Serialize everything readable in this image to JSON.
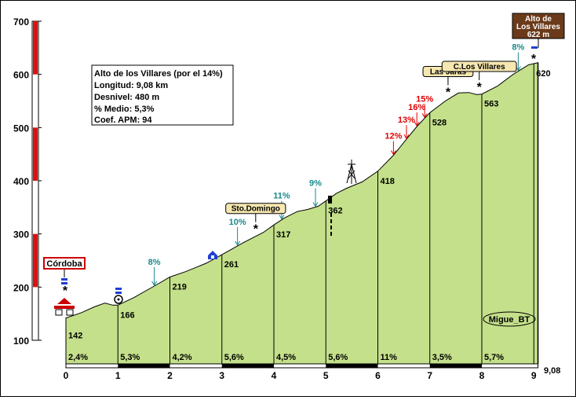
{
  "chart_data": {
    "type": "area",
    "info": {
      "title": "Alto de los Villares (por el 14%)",
      "longitud": "Longitud: 9,08 km",
      "desnivel": "Desnivel: 480 m",
      "medio": "% Medio: 5,3%",
      "apm": "Coef. APM: 94"
    },
    "summit": {
      "line1": "Alto de",
      "line2": "Los Villares",
      "line3": "622 m"
    },
    "start_label": "Córdoba",
    "author": "Migue_BT",
    "ylim": [
      100,
      700
    ],
    "xlim": [
      0,
      9.08
    ],
    "y_ticks": [
      "100",
      "200",
      "300",
      "400",
      "500",
      "600",
      "700"
    ],
    "x_ticks": [
      "0",
      "1",
      "2",
      "3",
      "4",
      "5",
      "6",
      "7",
      "8",
      "9"
    ],
    "x_end_label": "9,08",
    "profile": [
      {
        "x": 0,
        "y": 142
      },
      {
        "x": 0.3,
        "y": 152
      },
      {
        "x": 0.55,
        "y": 163
      },
      {
        "x": 0.75,
        "y": 170
      },
      {
        "x": 0.9,
        "y": 166
      },
      {
        "x": 1,
        "y": 166
      },
      {
        "x": 1.3,
        "y": 180
      },
      {
        "x": 1.7,
        "y": 202
      },
      {
        "x": 2,
        "y": 219
      },
      {
        "x": 2.3,
        "y": 229
      },
      {
        "x": 2.7,
        "y": 245
      },
      {
        "x": 3,
        "y": 261
      },
      {
        "x": 3.4,
        "y": 283
      },
      {
        "x": 3.8,
        "y": 303
      },
      {
        "x": 4,
        "y": 317
      },
      {
        "x": 4.2,
        "y": 330
      },
      {
        "x": 4.45,
        "y": 342
      },
      {
        "x": 4.65,
        "y": 346
      },
      {
        "x": 4.85,
        "y": 352
      },
      {
        "x": 5,
        "y": 362
      },
      {
        "x": 5.2,
        "y": 376
      },
      {
        "x": 5.4,
        "y": 386
      },
      {
        "x": 5.7,
        "y": 398
      },
      {
        "x": 6,
        "y": 418
      },
      {
        "x": 6.3,
        "y": 448
      },
      {
        "x": 6.55,
        "y": 478
      },
      {
        "x": 6.75,
        "y": 502
      },
      {
        "x": 7,
        "y": 528
      },
      {
        "x": 7.3,
        "y": 550
      },
      {
        "x": 7.55,
        "y": 565
      },
      {
        "x": 7.75,
        "y": 566
      },
      {
        "x": 7.9,
        "y": 562
      },
      {
        "x": 8,
        "y": 563
      },
      {
        "x": 8.3,
        "y": 578
      },
      {
        "x": 8.6,
        "y": 600
      },
      {
        "x": 8.9,
        "y": 618
      },
      {
        "x": 9.08,
        "y": 622
      }
    ],
    "km_points": [
      {
        "x": 0,
        "value": "142"
      },
      {
        "x": 1,
        "value": "166"
      },
      {
        "x": 2,
        "value": "219"
      },
      {
        "x": 3,
        "value": "261"
      },
      {
        "x": 4,
        "value": "317"
      },
      {
        "x": 5,
        "value": "362"
      },
      {
        "x": 6,
        "value": "418"
      },
      {
        "x": 7,
        "value": "528"
      },
      {
        "x": 8,
        "value": "563"
      },
      {
        "x": 9,
        "value": "620"
      }
    ],
    "segment_gradients": [
      "2,4%",
      "5,3%",
      "4,2%",
      "5,6%",
      "4,5%",
      "5,6%",
      "11%",
      "3,5%",
      "5,7%"
    ],
    "gradient_marks": [
      {
        "x": 1.7,
        "label": "8%",
        "color": "teal"
      },
      {
        "x": 3.3,
        "label": "10%",
        "color": "teal"
      },
      {
        "x": 4.15,
        "label": "11%",
        "color": "teal"
      },
      {
        "x": 4.8,
        "label": "9%",
        "color": "teal"
      },
      {
        "x": 6.3,
        "label": "12%",
        "color": "red"
      },
      {
        "x": 6.55,
        "label": "13%",
        "color": "red"
      },
      {
        "x": 6.75,
        "label": "16%",
        "color": "red"
      },
      {
        "x": 6.9,
        "label": "15%",
        "color": "red"
      },
      {
        "x": 8.7,
        "label": "8%",
        "color": "teal"
      }
    ],
    "places": [
      {
        "x": 3.65,
        "label": "Sto.Domingo"
      },
      {
        "x": 7.35,
        "label": "Las Jaras"
      },
      {
        "x": 7.95,
        "label": "C.Los Villares"
      }
    ]
  }
}
